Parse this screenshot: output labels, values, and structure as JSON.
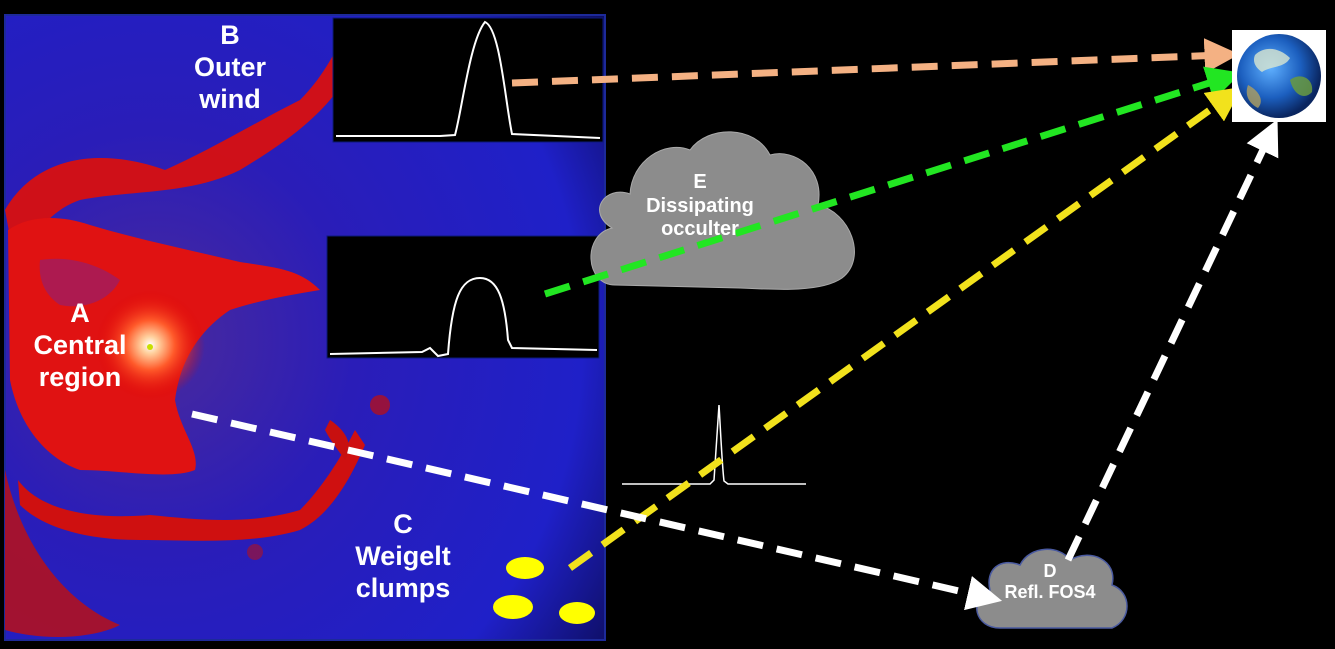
{
  "labels": {
    "a": {
      "letter": "A",
      "line1": "Central",
      "line2": "region"
    },
    "b": {
      "letter": "B",
      "line1": "Outer",
      "line2": "wind"
    },
    "c": {
      "letter": "C",
      "line1": "Weigelt",
      "line2": "clumps"
    },
    "d": {
      "letter": "D",
      "line1": "Refl. FOS4"
    },
    "e": {
      "letter": "E",
      "line1": "Dissipating",
      "line2": "occulter"
    }
  },
  "colors": {
    "sightline_b": "#f4b183",
    "sightline_e": "#22e622",
    "sightline_c": "#f2e21c",
    "sightline_a_d": "#ffffff",
    "cloud": "#8c8c8c",
    "clump": "#ffff00"
  },
  "icons": {
    "observer": "earth-globe-icon"
  }
}
